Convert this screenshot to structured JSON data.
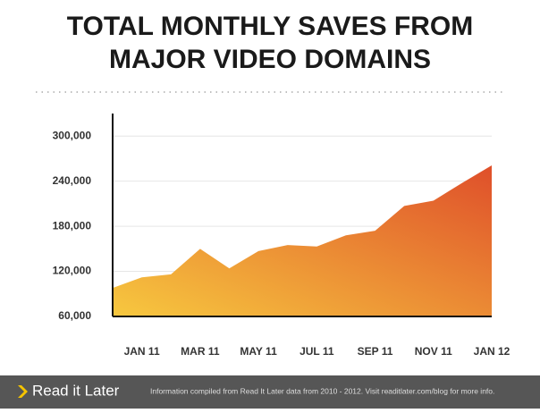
{
  "chart_data": {
    "type": "area",
    "title": [
      "TOTAL MONTHLY SAVES FROM",
      "MAJOR VIDEO DOMAINS"
    ],
    "categories": [
      null,
      "JAN 11",
      null,
      "MAR 11",
      null,
      "MAY 11",
      null,
      "JUL 11",
      null,
      "SEP 11",
      null,
      "NOV 11",
      null,
      "JAN 12"
    ],
    "values": [
      98000,
      112000,
      116000,
      150000,
      124000,
      147000,
      155000,
      153000,
      168000,
      174000,
      207000,
      214000,
      238000,
      261000
    ],
    "gradient": [
      "#f7c83f",
      "#df4f2a"
    ],
    "ylim": [
      60000,
      330000
    ],
    "yticks": [
      {
        "value": 60000,
        "label": "60,000"
      },
      {
        "value": 120000,
        "label": "120,000"
      },
      {
        "value": 180000,
        "label": "180,000"
      },
      {
        "value": 240000,
        "label": "240,000"
      },
      {
        "value": 300000,
        "label": "300,000"
      }
    ],
    "grid": true
  },
  "footer": {
    "logo": "Read it Later",
    "note": "Information compiled from Read It Later data from 2010 - 2012. Visit readitlater.com/blog for more info."
  }
}
